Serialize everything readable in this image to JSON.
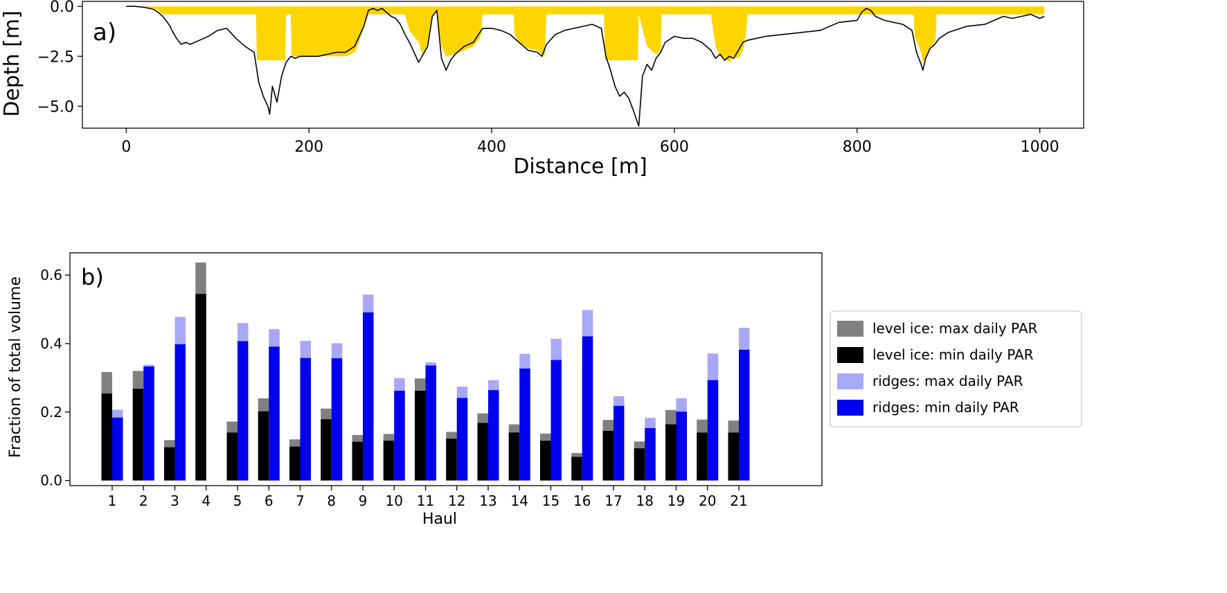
{
  "chart_data": [
    {
      "type": "area",
      "panel_label": "a)",
      "xlabel": "Distance [m]",
      "ylabel": "Depth [m]",
      "xlim": [
        -48,
        1048
      ],
      "ylim": [
        -6.1,
        0.25
      ],
      "xticks": [
        0,
        200,
        400,
        600,
        800,
        1000
      ],
      "yticks": [
        0.0,
        -2.5,
        -5.0
      ],
      "xtick_labels": [
        "0",
        "200",
        "400",
        "600",
        "800",
        "1000"
      ],
      "ytick_labels": [
        "0.0",
        "−2.5",
        "−5.0"
      ],
      "grid": false,
      "colors": {
        "profile": "#000000",
        "fill": "#FFD500"
      },
      "profile": {
        "x": [
          0,
          10,
          20,
          30,
          35,
          40,
          45,
          48,
          50,
          55,
          60,
          65,
          70,
          75,
          80,
          90,
          100,
          110,
          120,
          130,
          140,
          145,
          150,
          155,
          157,
          160,
          165,
          170,
          175,
          180,
          185,
          190,
          200,
          210,
          220,
          230,
          240,
          250,
          260,
          265,
          270,
          275,
          280,
          285,
          290,
          295,
          300,
          305,
          310,
          315,
          320,
          325,
          330,
          335,
          340,
          345,
          350,
          355,
          360,
          370,
          380,
          390,
          400,
          410,
          420,
          430,
          440,
          450,
          455,
          460,
          470,
          480,
          490,
          500,
          510,
          520,
          525,
          530,
          535,
          540,
          545,
          550,
          555,
          558,
          561,
          565,
          570,
          575,
          580,
          585,
          590,
          600,
          610,
          620,
          630,
          640,
          645,
          650,
          655,
          660,
          665,
          670,
          675,
          680,
          690,
          700,
          720,
          740,
          760,
          780,
          800,
          805,
          810,
          815,
          820,
          830,
          840,
          850,
          860,
          865,
          870,
          872,
          875,
          880,
          885,
          890,
          900,
          920,
          940,
          950,
          960,
          970,
          980,
          990,
          1000,
          1005
        ],
        "y": [
          0,
          0,
          -0.05,
          -0.15,
          -0.3,
          -0.5,
          -0.8,
          -1.0,
          -1.2,
          -1.6,
          -1.9,
          -1.8,
          -1.9,
          -1.8,
          -1.7,
          -1.5,
          -1.2,
          -1.1,
          -1.6,
          -2.0,
          -2.3,
          -3.8,
          -4.5,
          -5.0,
          -5.4,
          -4.0,
          -4.8,
          -3.5,
          -2.8,
          -2.5,
          -2.6,
          -2.5,
          -2.5,
          -2.5,
          -2.4,
          -2.3,
          -2.3,
          -2.0,
          -1.0,
          -0.2,
          -0.1,
          -0.2,
          -0.1,
          -0.3,
          -0.5,
          -0.6,
          -0.9,
          -1.4,
          -1.8,
          -2.3,
          -2.8,
          -2.4,
          -2.0,
          -0.5,
          -0.2,
          -2.6,
          -3.2,
          -2.7,
          -2.4,
          -2.0,
          -1.8,
          -1.1,
          -1.1,
          -1.2,
          -1.4,
          -1.8,
          -2.2,
          -2.3,
          -2.5,
          -1.9,
          -1.4,
          -1.2,
          -1.1,
          -1.0,
          -0.9,
          -1.1,
          -2.5,
          -3.2,
          -4.0,
          -4.5,
          -4.3,
          -4.6,
          -5.2,
          -5.6,
          -6.0,
          -3.5,
          -2.9,
          -3.2,
          -2.6,
          -2.3,
          -1.8,
          -1.5,
          -1.6,
          -1.6,
          -1.8,
          -2.2,
          -2.6,
          -2.4,
          -2.7,
          -2.5,
          -2.6,
          -2.2,
          -1.8,
          -1.7,
          -1.6,
          -1.5,
          -1.4,
          -1.3,
          -1.2,
          -0.8,
          -0.7,
          -0.3,
          -0.1,
          -0.2,
          -0.5,
          -0.7,
          -0.8,
          -0.9,
          -1.2,
          -2.3,
          -2.9,
          -3.2,
          -2.6,
          -2.1,
          -1.9,
          -1.6,
          -1.3,
          -1.0,
          -0.9,
          -0.7,
          -0.5,
          -0.6,
          -0.5,
          -0.4,
          -0.6,
          -0.5
        ]
      },
      "fill_boundary": {
        "x": [
          0,
          30,
          35,
          40,
          142,
          143,
          174,
          175,
          180,
          181,
          240,
          250,
          253,
          265,
          270,
          280,
          285,
          290,
          305,
          310,
          320,
          325,
          330,
          335,
          340,
          345,
          350,
          360,
          370,
          380,
          388,
          390,
          424,
          425,
          430,
          440,
          450,
          455,
          458,
          460,
          523,
          524,
          560,
          561,
          570,
          580,
          585,
          586,
          640,
          645,
          650,
          655,
          660,
          665,
          670,
          675,
          678,
          680,
          862,
          863,
          870,
          872,
          875,
          880,
          886,
          887,
          1005
        ],
        "y": [
          0,
          -0.1,
          -0.2,
          -0.4,
          -0.4,
          -2.7,
          -2.7,
          -0.4,
          -0.4,
          -2.5,
          -2.5,
          -2.3,
          -2.0,
          -0.4,
          -0.4,
          -0.4,
          -0.4,
          -0.4,
          -0.4,
          -1.2,
          -1.8,
          -2.5,
          -2.0,
          -0.5,
          -0.2,
          -2.0,
          -2.5,
          -2.4,
          -2.2,
          -2.0,
          -1.5,
          -0.4,
          -0.4,
          -1.4,
          -1.8,
          -2.1,
          -2.2,
          -2.4,
          -2.5,
          -0.4,
          -0.4,
          -2.7,
          -2.7,
          -0.4,
          -2.0,
          -2.4,
          -2.2,
          -0.4,
          -0.4,
          -2.0,
          -2.5,
          -2.6,
          -2.8,
          -2.5,
          -2.6,
          -2.2,
          -1.5,
          -0.4,
          -0.4,
          -1.5,
          -2.3,
          -2.8,
          -2.6,
          -2.1,
          -1.7,
          -0.4,
          -0.4
        ]
      }
    },
    {
      "type": "bar",
      "panel_label": "b)",
      "xlabel": "Haul",
      "ylabel": "Fraction of total volume",
      "ylim": [
        -0.015,
        0.665
      ],
      "yticks": [
        0.0,
        0.2,
        0.4,
        0.6
      ],
      "ytick_labels": [
        "0.0",
        "0.2",
        "0.4",
        "0.6"
      ],
      "grid": false,
      "legend_position": "right-outside",
      "categories": [
        "1",
        "2",
        "3",
        "4",
        "5",
        "6",
        "7",
        "8",
        "9",
        "10",
        "11",
        "12",
        "13",
        "14",
        "15",
        "16",
        "17",
        "18",
        "19",
        "20",
        "21"
      ],
      "series": [
        {
          "name": "level ice: max daily PAR",
          "color": "#808080",
          "values": [
            0.317,
            0.32,
            0.118,
            0.637,
            0.172,
            0.24,
            0.12,
            0.21,
            0.133,
            0.136,
            0.298,
            0.142,
            0.196,
            0.164,
            0.137,
            0.08,
            0.177,
            0.114,
            0.206,
            0.178,
            0.175
          ]
        },
        {
          "name": "level ice: min daily PAR",
          "color": "#000000",
          "values": [
            0.254,
            0.268,
            0.097,
            0.545,
            0.14,
            0.202,
            0.099,
            0.179,
            0.113,
            0.116,
            0.262,
            0.122,
            0.168,
            0.14,
            0.116,
            0.069,
            0.145,
            0.094,
            0.164,
            0.14,
            0.14
          ]
        },
        {
          "name": "ridges: max daily PAR",
          "color": "#A8A8F8",
          "values": [
            0.207,
            0.338,
            0.478,
            0.0,
            0.46,
            0.442,
            0.408,
            0.401,
            0.543,
            0.299,
            0.345,
            0.274,
            0.293,
            0.37,
            0.414,
            0.498,
            0.246,
            0.183,
            0.24,
            0.371,
            0.446
          ]
        },
        {
          "name": "ridges: min daily PAR",
          "color": "#0000F0",
          "values": [
            0.184,
            0.333,
            0.398,
            0.0,
            0.407,
            0.391,
            0.358,
            0.357,
            0.491,
            0.262,
            0.336,
            0.241,
            0.264,
            0.327,
            0.352,
            0.421,
            0.218,
            0.153,
            0.201,
            0.293,
            0.382
          ]
        }
      ]
    }
  ]
}
